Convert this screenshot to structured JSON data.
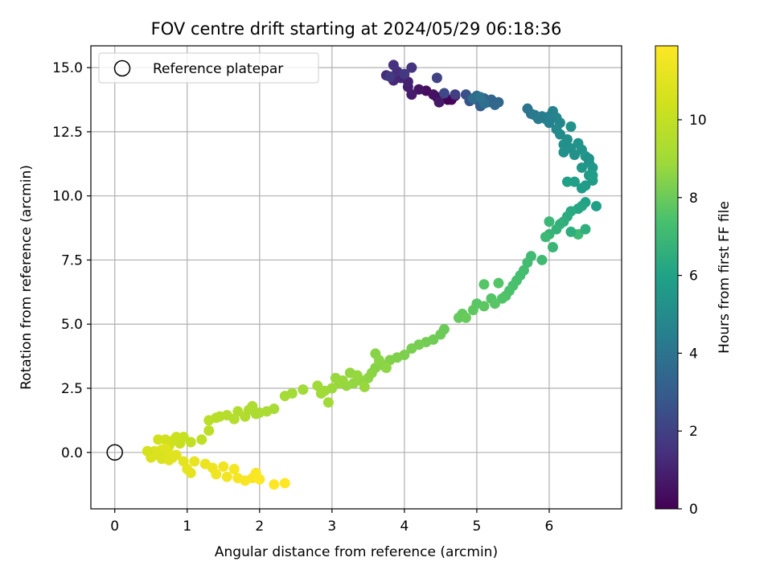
{
  "chart_data": {
    "type": "scatter",
    "title": "FOV centre drift starting at 2024/05/29 06:18:36",
    "xlabel": "Angular distance from reference (arcmin)",
    "ylabel": "Rotation from reference (arcmin)",
    "xlim": [
      -0.33,
      7.0
    ],
    "ylim": [
      -2.2,
      15.85
    ],
    "xticks": [
      0,
      1,
      2,
      3,
      4,
      5,
      6
    ],
    "yticks": [
      0.0,
      2.5,
      5.0,
      7.5,
      10.0,
      12.5,
      15.0
    ],
    "xtick_labels": [
      "0",
      "1",
      "2",
      "3",
      "4",
      "5",
      "6"
    ],
    "ytick_labels": [
      "0.0",
      "2.5",
      "5.0",
      "7.5",
      "10.0",
      "12.5",
      "15.0"
    ],
    "grid": true,
    "legend": {
      "placement": "top-left",
      "entries": [
        "Reference platepar"
      ]
    },
    "reference_point": {
      "x": 0,
      "y": 0,
      "label": "Reference platepar"
    },
    "colorbar": {
      "label": "Hours from first FF file",
      "colormap": "viridis",
      "range": [
        0,
        11.9
      ],
      "ticks": [
        0,
        2,
        4,
        6,
        8,
        10
      ],
      "tick_labels": [
        "0",
        "2",
        "4",
        "6",
        "8",
        "10"
      ]
    },
    "points": [
      [
        4.6,
        13.75,
        0.0
      ],
      [
        4.65,
        13.75,
        0.1
      ],
      [
        4.7,
        13.9,
        0.2
      ],
      [
        4.45,
        13.85,
        0.3
      ],
      [
        4.3,
        14.1,
        0.4
      ],
      [
        4.4,
        13.95,
        0.5
      ],
      [
        4.2,
        14.15,
        0.6
      ],
      [
        4.48,
        13.65,
        0.7
      ],
      [
        4.1,
        13.95,
        0.8
      ],
      [
        4.05,
        14.25,
        0.9
      ],
      [
        4.05,
        14.45,
        1.0
      ],
      [
        3.95,
        14.6,
        1.1
      ],
      [
        3.85,
        14.5,
        1.2
      ],
      [
        3.75,
        14.7,
        1.3
      ],
      [
        3.9,
        14.85,
        1.4
      ],
      [
        3.85,
        15.1,
        1.5
      ],
      [
        4.1,
        15.0,
        1.6
      ],
      [
        4.0,
        14.75,
        1.7
      ],
      [
        3.8,
        14.65,
        1.8
      ],
      [
        4.7,
        13.95,
        1.9
      ],
      [
        4.45,
        14.6,
        2.1
      ],
      [
        4.55,
        14.0,
        2.3
      ],
      [
        4.85,
        13.95,
        2.5
      ],
      [
        4.9,
        13.7,
        2.7
      ],
      [
        5.0,
        13.75,
        2.9
      ],
      [
        5.05,
        13.5,
        3.0
      ],
      [
        5.1,
        13.8,
        3.1
      ],
      [
        5.15,
        13.65,
        3.2
      ],
      [
        5.2,
        13.75,
        3.3
      ],
      [
        5.3,
        13.65,
        3.4
      ],
      [
        5.25,
        13.55,
        3.5
      ],
      [
        5.0,
        13.9,
        3.6
      ],
      [
        4.95,
        13.8,
        3.7
      ],
      [
        5.1,
        13.6,
        3.8
      ],
      [
        5.05,
        13.85,
        3.9
      ],
      [
        5.7,
        13.4,
        4.0
      ],
      [
        5.75,
        13.2,
        4.1
      ],
      [
        5.8,
        13.15,
        4.2
      ],
      [
        5.9,
        13.1,
        4.3
      ],
      [
        5.95,
        13.0,
        4.4
      ],
      [
        6.0,
        13.1,
        4.5
      ],
      [
        6.05,
        13.3,
        4.6
      ],
      [
        6.1,
        13.05,
        4.7
      ],
      [
        6.15,
        12.85,
        4.8
      ],
      [
        6.1,
        12.6,
        4.9
      ],
      [
        6.15,
        12.4,
        5.0
      ],
      [
        6.25,
        12.2,
        5.1
      ],
      [
        6.2,
        12.0,
        5.15
      ],
      [
        6.3,
        11.85,
        5.2
      ],
      [
        6.35,
        11.6,
        5.25
      ],
      [
        6.3,
        12.7,
        5.3
      ],
      [
        6.4,
        12.05,
        5.35
      ],
      [
        6.45,
        11.8,
        5.4
      ],
      [
        6.5,
        11.55,
        5.45
      ],
      [
        6.55,
        11.3,
        5.5
      ],
      [
        6.6,
        11.1,
        5.55
      ],
      [
        6.55,
        10.8,
        5.6
      ],
      [
        6.6,
        10.6,
        5.65
      ],
      [
        6.5,
        10.4,
        5.7
      ],
      [
        6.45,
        10.3,
        5.75
      ],
      [
        6.6,
        10.8,
        5.8
      ],
      [
        6.65,
        9.6,
        5.85
      ],
      [
        6.35,
        10.55,
        5.9
      ],
      [
        6.25,
        10.55,
        5.95
      ],
      [
        6.45,
        11.1,
        5.5
      ],
      [
        6.2,
        11.7,
        5.2
      ],
      [
        5.85,
        13.0,
        4.35
      ],
      [
        6.0,
        12.85,
        4.5
      ],
      [
        6.55,
        11.45,
        5.3
      ],
      [
        6.5,
        9.75,
        6.0
      ],
      [
        6.45,
        9.6,
        6.1
      ],
      [
        6.4,
        9.5,
        6.2
      ],
      [
        6.3,
        9.4,
        6.3
      ],
      [
        6.25,
        9.2,
        6.4
      ],
      [
        6.2,
        9.0,
        6.5
      ],
      [
        6.15,
        8.9,
        6.6
      ],
      [
        6.1,
        8.7,
        6.7
      ],
      [
        6.0,
        8.5,
        6.8
      ],
      [
        6.05,
        8.0,
        6.9
      ],
      [
        6.0,
        9.0,
        6.95
      ],
      [
        5.95,
        8.4,
        7.0
      ],
      [
        6.4,
        8.5,
        7.05
      ],
      [
        6.3,
        8.6,
        6.5
      ],
      [
        6.5,
        8.7,
        6.55
      ],
      [
        5.9,
        7.5,
        7.1
      ],
      [
        5.75,
        7.65,
        7.15
      ],
      [
        5.7,
        7.4,
        7.2
      ],
      [
        5.65,
        7.1,
        7.25
      ],
      [
        5.6,
        6.9,
        7.3
      ],
      [
        5.55,
        6.7,
        7.35
      ],
      [
        5.5,
        6.5,
        7.4
      ],
      [
        5.45,
        6.3,
        7.45
      ],
      [
        5.4,
        6.1,
        7.5
      ],
      [
        5.35,
        6.0,
        7.55
      ],
      [
        5.2,
        6.0,
        7.6
      ],
      [
        5.1,
        6.55,
        7.65
      ],
      [
        5.3,
        6.6,
        7.6
      ],
      [
        5.0,
        5.8,
        7.7
      ],
      [
        5.1,
        5.7,
        7.75
      ],
      [
        5.25,
        5.8,
        7.7
      ],
      [
        4.95,
        5.55,
        7.8
      ],
      [
        4.8,
        5.4,
        7.85
      ],
      [
        4.75,
        5.25,
        7.9
      ],
      [
        4.85,
        5.25,
        7.95
      ],
      [
        4.55,
        4.8,
        8.0
      ],
      [
        4.5,
        4.6,
        8.05
      ],
      [
        4.4,
        4.4,
        8.1
      ],
      [
        4.3,
        4.3,
        8.15
      ],
      [
        4.2,
        4.2,
        8.2
      ],
      [
        4.1,
        4.05,
        8.25
      ],
      [
        4.0,
        3.8,
        8.3
      ],
      [
        3.9,
        3.7,
        8.35
      ],
      [
        3.8,
        3.6,
        8.4
      ],
      [
        3.7,
        3.4,
        8.45
      ],
      [
        3.6,
        3.3,
        8.5
      ],
      [
        3.55,
        3.1,
        8.55
      ],
      [
        3.5,
        2.9,
        8.6
      ],
      [
        3.4,
        2.8,
        8.65
      ],
      [
        3.3,
        2.7,
        8.7
      ],
      [
        3.2,
        2.6,
        8.75
      ],
      [
        3.1,
        2.7,
        8.8
      ],
      [
        3.0,
        2.5,
        8.85
      ],
      [
        2.9,
        2.4,
        8.9
      ],
      [
        2.85,
        2.3,
        8.95
      ],
      [
        3.6,
        3.85,
        8.5
      ],
      [
        3.65,
        3.6,
        8.55
      ],
      [
        3.75,
        3.3,
        8.6
      ],
      [
        3.25,
        3.1,
        8.7
      ],
      [
        3.45,
        2.55,
        8.8
      ],
      [
        2.95,
        1.95,
        9.0
      ],
      [
        2.8,
        2.6,
        8.95
      ],
      [
        3.05,
        2.9,
        8.8
      ],
      [
        3.35,
        3.0,
        8.75
      ],
      [
        3.15,
        2.8,
        8.8
      ],
      [
        2.6,
        2.45,
        9.0
      ],
      [
        2.45,
        2.3,
        9.05
      ],
      [
        2.35,
        2.2,
        9.1
      ],
      [
        2.2,
        1.7,
        9.15
      ],
      [
        2.1,
        1.6,
        9.2
      ],
      [
        2.0,
        1.55,
        9.25
      ],
      [
        1.95,
        1.5,
        9.3
      ],
      [
        1.9,
        1.8,
        9.35
      ],
      [
        1.85,
        1.65,
        9.4
      ],
      [
        1.8,
        1.4,
        9.45
      ],
      [
        1.7,
        1.6,
        9.5
      ],
      [
        1.65,
        1.3,
        9.55
      ],
      [
        1.55,
        1.45,
        9.6
      ],
      [
        1.45,
        1.4,
        9.65
      ],
      [
        1.4,
        1.35,
        9.7
      ],
      [
        1.3,
        1.25,
        9.75
      ],
      [
        1.3,
        0.85,
        9.8
      ],
      [
        1.2,
        0.5,
        9.9
      ],
      [
        1.05,
        0.4,
        10.0
      ],
      [
        0.95,
        0.6,
        10.1
      ],
      [
        0.9,
        0.35,
        10.2
      ],
      [
        0.8,
        0.45,
        10.3
      ],
      [
        0.75,
        0.25,
        10.4
      ],
      [
        0.7,
        0.5,
        10.5
      ],
      [
        0.65,
        0.1,
        10.6
      ],
      [
        0.6,
        0.0,
        10.65
      ],
      [
        0.55,
        -0.1,
        10.7
      ],
      [
        0.5,
        -0.2,
        10.75
      ],
      [
        0.55,
        0.05,
        10.8
      ],
      [
        0.7,
        0.15,
        10.85
      ],
      [
        0.75,
        -0.05,
        10.9
      ],
      [
        0.8,
        -0.2,
        10.95
      ],
      [
        0.85,
        -0.1,
        11.0
      ],
      [
        0.95,
        -0.35,
        11.05
      ],
      [
        1.0,
        -0.65,
        11.1
      ],
      [
        1.05,
        -0.8,
        11.15
      ],
      [
        1.1,
        -0.35,
        11.2
      ],
      [
        1.25,
        -0.45,
        11.3
      ],
      [
        1.35,
        -0.6,
        11.4
      ],
      [
        1.4,
        -0.85,
        11.45
      ],
      [
        1.5,
        -0.55,
        11.5
      ],
      [
        1.55,
        -0.95,
        11.55
      ],
      [
        1.65,
        -0.65,
        11.6
      ],
      [
        1.7,
        -1.0,
        11.65
      ],
      [
        1.8,
        -1.1,
        11.7
      ],
      [
        1.9,
        -1.0,
        11.75
      ],
      [
        1.95,
        -0.8,
        11.8
      ],
      [
        2.0,
        -1.05,
        11.85
      ],
      [
        2.2,
        -1.25,
        11.9
      ],
      [
        2.35,
        -1.2,
        11.9
      ],
      [
        0.6,
        0.5,
        10.45
      ],
      [
        0.85,
        0.6,
        10.25
      ],
      [
        0.65,
        -0.25,
        10.7
      ],
      [
        0.45,
        0.05,
        10.6
      ],
      [
        0.75,
        -0.3,
        10.9
      ]
    ]
  }
}
